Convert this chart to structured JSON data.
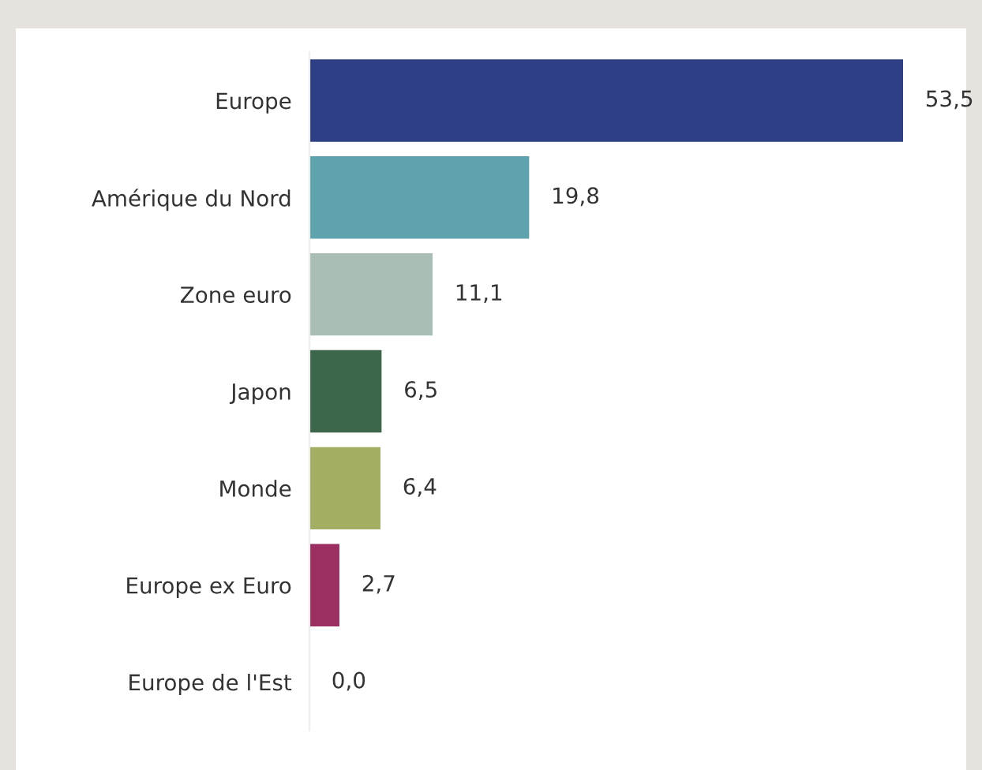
{
  "chart_data": {
    "type": "bar",
    "orientation": "horizontal",
    "categories": [
      "Europe",
      "Amérique du Nord",
      "Zone euro",
      "Japon",
      "Monde",
      "Europe ex Euro",
      "Europe de l'Est"
    ],
    "values": [
      53.5,
      19.8,
      11.1,
      6.5,
      6.4,
      2.7,
      0.0
    ],
    "colors": [
      "#2e3f85",
      "#5fa3ae",
      "#a9bfb5",
      "#3c674a",
      "#a3ae63",
      "#9c2f62",
      "#888888"
    ],
    "value_labels": [
      "53,5",
      "19,8",
      "11,1",
      "6,5",
      "6,4",
      "2,7",
      "0,0"
    ],
    "grid": false,
    "legend": false
  }
}
